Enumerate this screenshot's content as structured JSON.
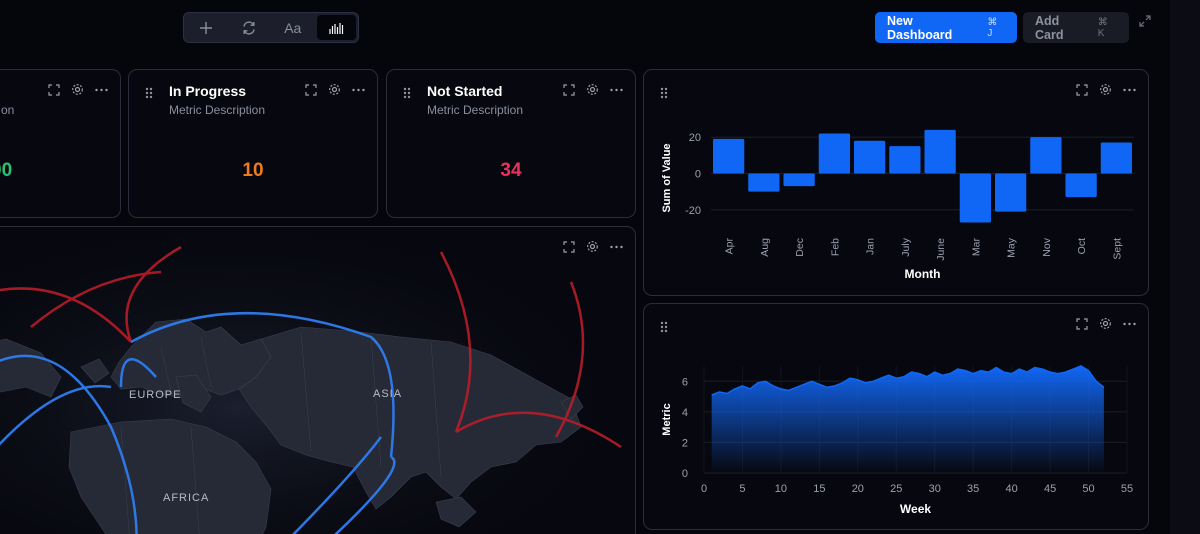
{
  "toolbar": {
    "tools": [
      {
        "name": "add-icon",
        "glyph": "+"
      },
      {
        "name": "refresh-icon",
        "glyph": "⟳"
      },
      {
        "name": "text-icon",
        "glyph": "Aa"
      },
      {
        "name": "chart-bars-icon",
        "glyph": ""
      }
    ],
    "active_tool": "chart-bars-icon"
  },
  "header": {
    "new_dashboard_label": "New Dashboard",
    "new_dashboard_shortcut": "⌘ J",
    "add_card_label": "Add Card",
    "add_card_shortcut": "⌘ K"
  },
  "metrics": [
    {
      "title": "",
      "desc": "on",
      "value": "00",
      "color": "#2fbf71"
    },
    {
      "title": "In Progress",
      "desc": "Metric Description",
      "value": "10",
      "color": "#f07b1d"
    },
    {
      "title": "Not Started",
      "desc": "Metric Description",
      "value": "34",
      "color": "#e8315f"
    }
  ],
  "map": {
    "labels": {
      "europe": "EUROPE",
      "asia": "ASIA",
      "africa": "AFRICA"
    },
    "colors": {
      "blue_arc": "#2f7df0",
      "red_arc": "#c21d2a",
      "land": "#262a36"
    }
  },
  "bar_chart": {
    "chart_data": {
      "type": "bar",
      "categories": [
        "Apr",
        "Aug",
        "Dec",
        "Feb",
        "Jan",
        "July",
        "June",
        "Mar",
        "May",
        "Nov",
        "Oct",
        "Sept"
      ],
      "values": [
        19,
        -10,
        -7,
        22,
        18,
        15,
        24,
        -27,
        -21,
        20,
        -13,
        17
      ],
      "xlabel": "Month",
      "ylabel": "Sum of Value",
      "ylim": [
        -30,
        25
      ],
      "yticks": [
        20,
        0,
        -20
      ],
      "color": "#1167f5"
    }
  },
  "area_chart": {
    "chart_data": {
      "type": "area",
      "x": [
        1,
        2,
        3,
        4,
        5,
        6,
        7,
        8,
        9,
        10,
        11,
        12,
        13,
        14,
        15,
        16,
        17,
        18,
        19,
        20,
        21,
        22,
        23,
        24,
        25,
        26,
        27,
        28,
        29,
        30,
        31,
        32,
        33,
        34,
        35,
        36,
        37,
        38,
        39,
        40,
        41,
        42,
        43,
        44,
        45,
        46,
        47,
        48,
        49,
        50,
        51,
        52
      ],
      "values": [
        5.1,
        5.3,
        5.2,
        5.5,
        5.7,
        5.5,
        5.9,
        6.0,
        5.7,
        5.5,
        5.4,
        5.6,
        5.8,
        6.0,
        5.8,
        5.6,
        5.7,
        5.9,
        6.2,
        6.1,
        5.9,
        6.0,
        6.2,
        6.4,
        6.2,
        6.3,
        6.6,
        6.5,
        6.3,
        6.6,
        6.4,
        6.5,
        6.8,
        6.7,
        6.5,
        6.7,
        6.6,
        6.9,
        6.6,
        6.5,
        6.8,
        6.6,
        6.9,
        6.8,
        6.6,
        6.5,
        6.6,
        6.8,
        7.0,
        6.7,
        6.0,
        5.6
      ],
      "xlabel": "Week",
      "ylabel": "Metric",
      "xlim": [
        0,
        55
      ],
      "ylim": [
        0,
        7
      ],
      "xticks": [
        0,
        5,
        10,
        15,
        20,
        25,
        30,
        35,
        40,
        45,
        50,
        55
      ],
      "yticks": [
        0,
        2,
        4,
        6
      ],
      "color": "#1167f5"
    }
  }
}
